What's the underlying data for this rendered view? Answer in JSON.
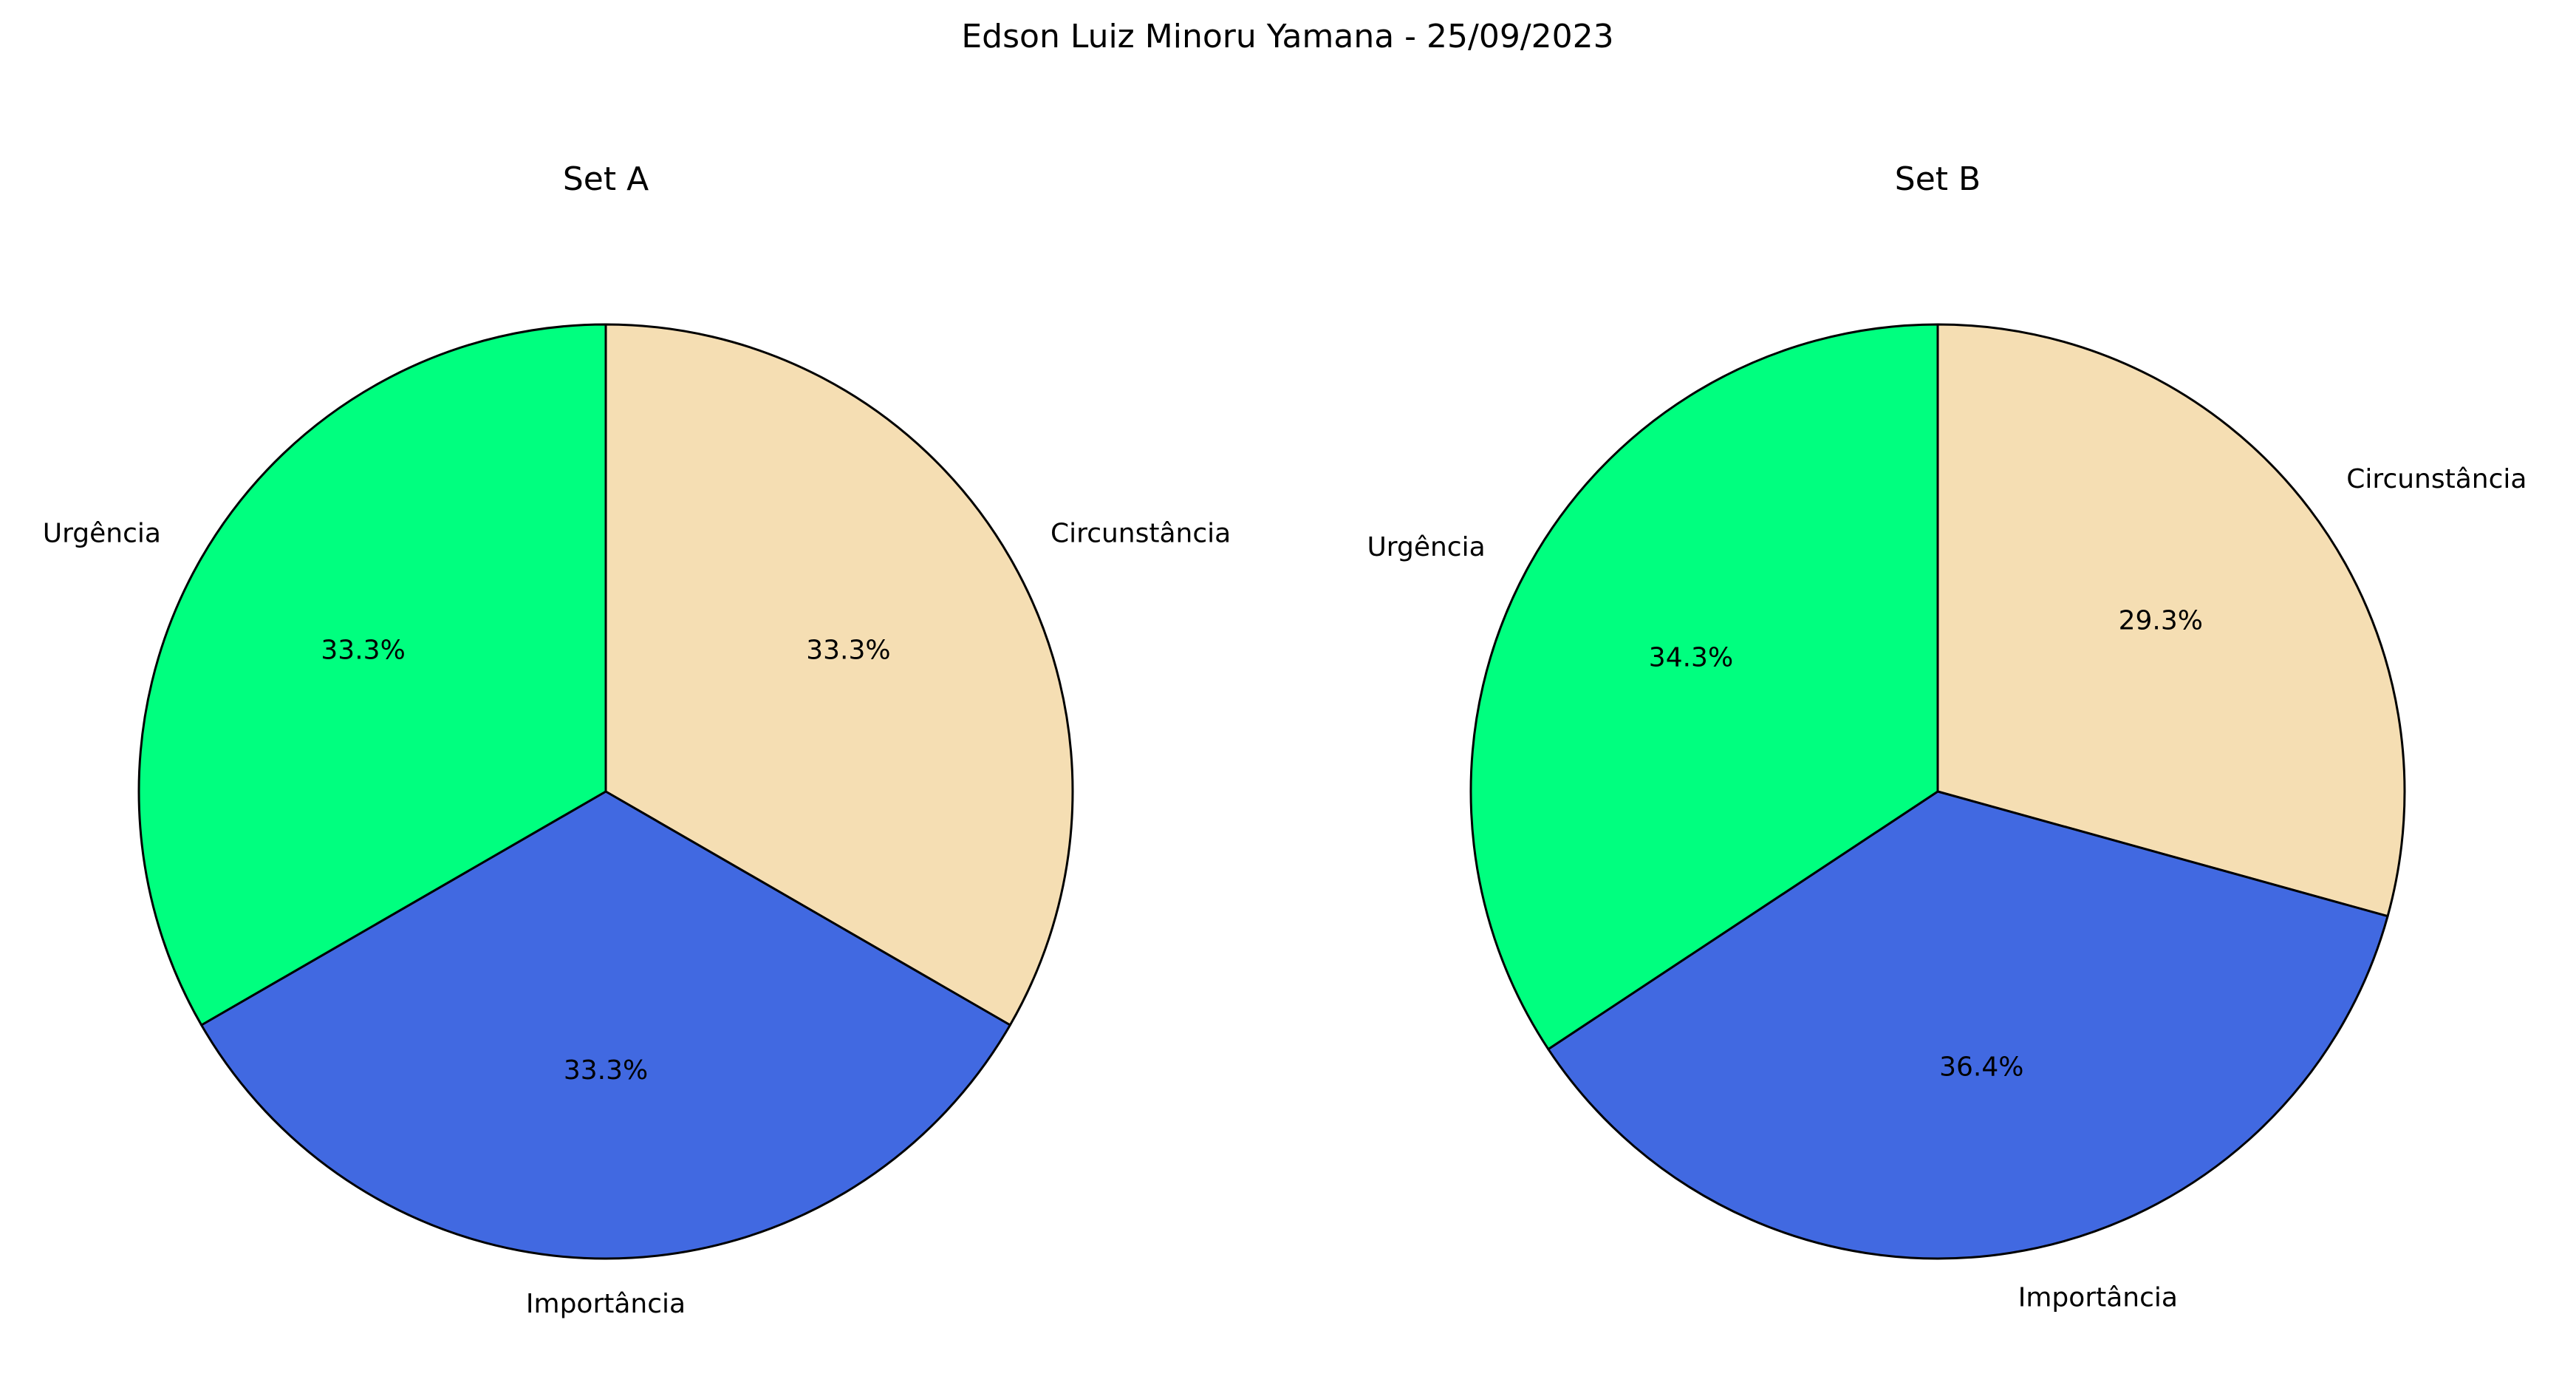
{
  "figure": {
    "title": "Edson Luiz Minoru Yamana - 25/09/2023"
  },
  "chart_data": [
    {
      "type": "pie",
      "title": "Set A",
      "start_angle_deg": 90,
      "direction": "clockwise",
      "categories": [
        "Circunstância",
        "Importância",
        "Urgência"
      ],
      "values": [
        33.3,
        33.3,
        33.3
      ],
      "value_labels": [
        "33.3%",
        "33.3%",
        "33.3%"
      ],
      "colors": [
        "#F5DEB3",
        "#4169E1",
        "#00FF7F"
      ],
      "edge_color": "#000000"
    },
    {
      "type": "pie",
      "title": "Set B",
      "start_angle_deg": 90,
      "direction": "clockwise",
      "categories": [
        "Circunstância",
        "Importância",
        "Urgência"
      ],
      "values": [
        29.3,
        36.4,
        34.3
      ],
      "value_labels": [
        "29.3%",
        "36.4%",
        "34.3%"
      ],
      "colors": [
        "#F5DEB3",
        "#4169E1",
        "#00FF7F"
      ],
      "edge_color": "#000000"
    }
  ]
}
